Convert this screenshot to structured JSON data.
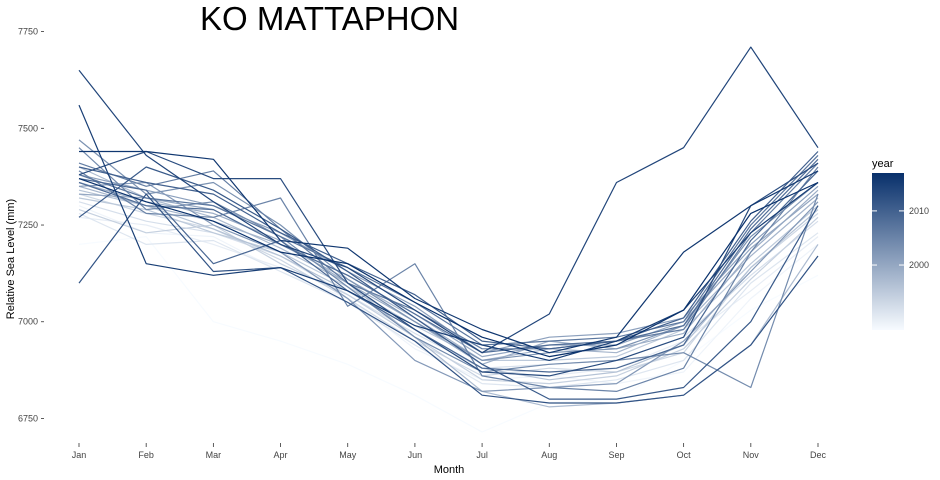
{
  "chart_data": {
    "type": "line",
    "title": "KO MATTAPHON",
    "xlabel": "Month",
    "ylabel": "Relative Sea Level (mm)",
    "categories": [
      "Jan",
      "Feb",
      "Mar",
      "Apr",
      "May",
      "Jun",
      "Jul",
      "Aug",
      "Sep",
      "Oct",
      "Nov",
      "Dec"
    ],
    "y_ticks": [
      6750,
      7000,
      7250,
      7500,
      7750
    ],
    "y_tick_labels": [
      "6750",
      "7000",
      "7250",
      "7500",
      "7750"
    ],
    "ylim": [
      6715,
      7780
    ],
    "grid": false,
    "legend": {
      "title": "year",
      "position": "right",
      "type": "colorbar",
      "range": [
        1988,
        2017
      ],
      "ticks": [
        2000,
        2010
      ],
      "tick_labels": [
        "2000",
        "2010"
      ],
      "colors": [
        "#f7fbff",
        "#08306b"
      ]
    },
    "series": [
      {
        "year": 1988,
        "values": [
          7200,
          7220,
          7000,
          6950,
          6890,
          6810,
          6715,
          6790,
          6800,
          6900,
          7030,
          7120
        ]
      },
      {
        "year": 1989,
        "values": [
          7300,
          7230,
          7220,
          7130,
          7060,
          6930,
          6850,
          6860,
          6840,
          6870,
          7060,
          7200
        ]
      },
      {
        "year": 1990,
        "values": [
          7270,
          7250,
          7200,
          7140,
          7080,
          6980,
          6870,
          6860,
          6880,
          6950,
          7080,
          7220
        ]
      },
      {
        "year": 1991,
        "values": [
          7280,
          7200,
          7210,
          7130,
          7050,
          6940,
          6840,
          6830,
          6850,
          6900,
          7100,
          7230
        ]
      },
      {
        "year": 1992,
        "values": [
          7310,
          7260,
          7230,
          7170,
          7070,
          6970,
          6880,
          6890,
          6900,
          6960,
          7120,
          7260
        ]
      },
      {
        "year": 1993,
        "values": [
          7330,
          7280,
          7240,
          7160,
          7060,
          6950,
          6860,
          6880,
          6870,
          6920,
          7140,
          7280
        ]
      },
      {
        "year": 1994,
        "values": [
          7290,
          7230,
          7250,
          7150,
          7070,
          6960,
          6850,
          6840,
          6860,
          6930,
          7110,
          7270
        ]
      },
      {
        "year": 1995,
        "values": [
          7320,
          7290,
          7230,
          7180,
          7090,
          6990,
          6900,
          6900,
          6910,
          6980,
          7150,
          7300
        ]
      },
      {
        "year": 1996,
        "values": [
          7340,
          7300,
          7240,
          7170,
          7080,
          6980,
          6880,
          6850,
          6870,
          6940,
          7140,
          7290
        ]
      },
      {
        "year": 1997,
        "values": [
          7400,
          7320,
          7270,
          7190,
          7100,
          6960,
          6820,
          6780,
          6790,
          6810,
          6940,
          7200
        ]
      },
      {
        "year": 1998,
        "values": [
          7350,
          7300,
          7260,
          7200,
          7110,
          7010,
          6900,
          6930,
          6920,
          6990,
          7170,
          7320
        ]
      },
      {
        "year": 1999,
        "values": [
          7360,
          7310,
          7280,
          7210,
          7100,
          7000,
          6890,
          6950,
          6930,
          6970,
          7180,
          7340
        ]
      },
      {
        "year": 2000,
        "values": [
          7330,
          7320,
          7290,
          7200,
          7120,
          7020,
          6910,
          6940,
          6940,
          7000,
          7190,
          7330
        ]
      },
      {
        "year": 2001,
        "values": [
          7380,
          7340,
          7300,
          7230,
          7130,
          7040,
          6920,
          6960,
          6970,
          7010,
          7200,
          7350
        ]
      },
      {
        "year": 2002,
        "values": [
          7350,
          7360,
          7250,
          7180,
          7060,
          6900,
          6820,
          6830,
          6840,
          6950,
          7130,
          7310
        ]
      },
      {
        "year": 2003,
        "values": [
          7470,
          7330,
          7360,
          7250,
          7110,
          7000,
          6900,
          6920,
          6930,
          6990,
          7220,
          7360
        ]
      },
      {
        "year": 2004,
        "values": [
          7450,
          7290,
          7310,
          7220,
          7090,
          6960,
          6870,
          6890,
          6900,
          6920,
          6830,
          7330
        ]
      },
      {
        "year": 2005,
        "values": [
          7390,
          7280,
          7270,
          7320,
          7040,
          7150,
          6860,
          6830,
          6820,
          6880,
          7180,
          7400
        ]
      },
      {
        "year": 2006,
        "values": [
          7410,
          7350,
          7390,
          7240,
          7100,
          7030,
          6930,
          6930,
          6950,
          6980,
          7230,
          7410
        ]
      },
      {
        "year": 2007,
        "values": [
          7380,
          7320,
          7300,
          7220,
          7140,
          7050,
          6940,
          6950,
          6960,
          7000,
          7250,
          7430
        ]
      },
      {
        "year": 2008,
        "values": [
          7360,
          7300,
          7290,
          7200,
          7120,
          7020,
          6920,
          6940,
          6950,
          6990,
          7240,
          7420
        ]
      },
      {
        "year": 2009,
        "values": [
          7370,
          7340,
          7150,
          7210,
          7080,
          6980,
          6880,
          6870,
          6880,
          6940,
          7210,
          7390
        ]
      },
      {
        "year": 2010,
        "values": [
          7400,
          7360,
          7330,
          7230,
          7150,
          7070,
          6950,
          6930,
          6950,
          7010,
          7260,
          7440
        ]
      },
      {
        "year": 2011,
        "values": [
          7270,
          7400,
          7340,
          7240,
          7130,
          7010,
          6890,
          6800,
          6800,
          6830,
          7000,
          7300
        ]
      },
      {
        "year": 2012,
        "values": [
          7100,
          7330,
          7130,
          7140,
          7050,
          6950,
          6810,
          6790,
          6790,
          6810,
          6940,
          7170
        ]
      },
      {
        "year": 2013,
        "values": [
          7380,
          7440,
          7370,
          7370,
          7100,
          6980,
          6870,
          6860,
          6900,
          6960,
          7300,
          7410
        ]
      },
      {
        "year": 2014,
        "values": [
          7650,
          7430,
          7310,
          7200,
          7140,
          7030,
          6920,
          7020,
          7360,
          7450,
          7710,
          7450
        ]
      },
      {
        "year": 2015,
        "values": [
          7560,
          7150,
          7120,
          7140,
          7080,
          6990,
          6940,
          6900,
          6950,
          7030,
          7230,
          7360
        ]
      },
      {
        "year": 2016,
        "values": [
          7440,
          7440,
          7420,
          7210,
          7190,
          7060,
          6980,
          6920,
          6960,
          7180,
          7300,
          7390
        ]
      },
      {
        "year": 2017,
        "values": [
          7370,
          7310,
          7260,
          7180,
          7150,
          7050,
          6960,
          6910,
          6940,
          7030,
          7280,
          7360
        ]
      }
    ]
  }
}
